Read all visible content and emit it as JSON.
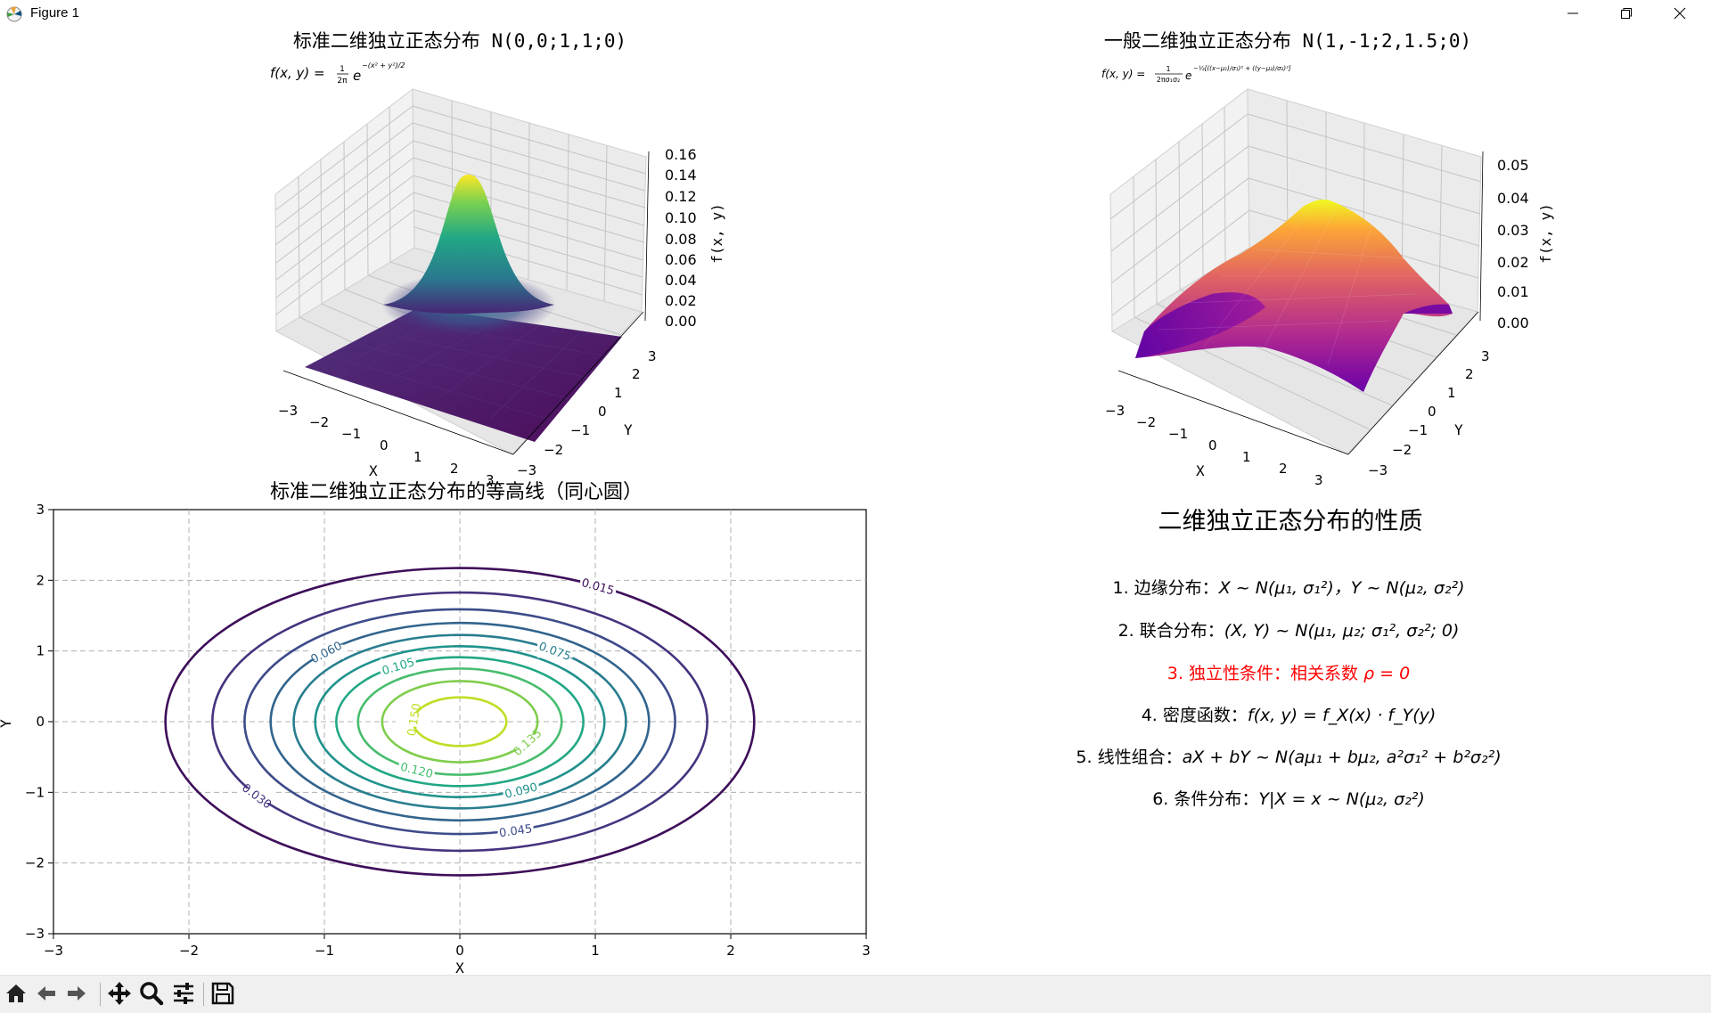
{
  "window": {
    "title": "Figure 1",
    "minimize_icon": "minimize-icon",
    "maximize_icon": "restore-icon",
    "close_icon": "close-icon",
    "app_icon": "matplotlib-icon"
  },
  "toolbar": {
    "buttons": [
      "home-icon",
      "back-icon",
      "forward-icon",
      "pan-icon",
      "zoom-icon",
      "configure-subplots-icon",
      "save-icon"
    ]
  },
  "panel1": {
    "title": "标准二维独立正态分布 N(0,0;1,1;0)",
    "formula_lhs": "f(x, y) =",
    "formula_num": "1",
    "formula_den": "2π",
    "formula_exp": "−(x² + y²)/2",
    "zlabel": "f(x, y)",
    "xlabel": "X",
    "ylabel": "Y",
    "zticks": [
      "0.00",
      "0.02",
      "0.04",
      "0.06",
      "0.08",
      "0.10",
      "0.12",
      "0.14",
      "0.16"
    ],
    "xticks": [
      "−3",
      "−2",
      "−1",
      "0",
      "1",
      "2",
      "3"
    ],
    "yticks": [
      "−3",
      "−2",
      "−1",
      "0",
      "1",
      "2",
      "3"
    ],
    "colormap": "viridis"
  },
  "panel2": {
    "title": "一般二维独立正态分布 N(1,-1;2,1.5;0)",
    "formula_lhs": "f(x, y) =",
    "formula_num": "1",
    "formula_den": "2πσ₁σ₂",
    "formula_exp": "−½[((x−μ₁)/σ₁)² + ((y−μ₂)/σ₂)²]",
    "zlabel": "f(x, y)",
    "xlabel": "X",
    "ylabel": "Y",
    "zticks": [
      "0.00",
      "0.01",
      "0.02",
      "0.03",
      "0.04",
      "0.05"
    ],
    "xticks": [
      "−3",
      "−2",
      "−1",
      "0",
      "1",
      "2",
      "3"
    ],
    "yticks": [
      "−3",
      "−2",
      "−1",
      "0",
      "1",
      "2",
      "3"
    ],
    "colormap": "plasma"
  },
  "panel3": {
    "title": "标准二维独立正态分布的等高线（同心圆）",
    "xlabel": "X",
    "ylabel": "Y",
    "xticks": [
      "−3",
      "−2",
      "−1",
      "0",
      "1",
      "2",
      "3"
    ],
    "yticks": [
      "−3",
      "−2",
      "−1",
      "0",
      "1",
      "2",
      "3"
    ]
  },
  "panel4": {
    "title": "二维独立正态分布的性质",
    "properties": [
      {
        "num": "1.",
        "label": "边缘分布：",
        "math": "X ~ N(μ₁, σ₁²)，Y ~ N(μ₂, σ₂²)"
      },
      {
        "num": "2.",
        "label": "联合分布：",
        "math": "(X, Y) ~ N(μ₁, μ₂; σ₁², σ₂²; 0)"
      },
      {
        "num": "3.",
        "label": "独立性条件：相关系数 ",
        "math": "ρ = 0"
      },
      {
        "num": "4.",
        "label": "密度函数：",
        "math": "f(x, y) = f_X(x) · f_Y(y)"
      },
      {
        "num": "5.",
        "label": "线性组合：",
        "math": "aX + bY ~ N(aμ₁ + bμ₂, a²σ₁² + b²σ₂²)"
      },
      {
        "num": "6.",
        "label": "条件分布：",
        "math": "Y|X = x ~ N(μ₂, σ₂²)"
      }
    ],
    "highlight_color": "#ff0000"
  },
  "chart_data": [
    {
      "type": "surface",
      "title": "标准二维独立正态分布 N(0,0;1,1;0)",
      "function": "f(x,y) = 1/(2π) · exp(−(x²+y²)/2)",
      "mu": [
        0,
        0
      ],
      "sigma": [
        1,
        1
      ],
      "rho": 0,
      "xlim": [
        -3,
        3
      ],
      "ylim": [
        -3,
        3
      ],
      "zlim": [
        0,
        0.16
      ],
      "peak": 0.159,
      "xlabel": "X",
      "ylabel": "Y",
      "zlabel": "f(x, y)",
      "colormap": "viridis"
    },
    {
      "type": "surface",
      "title": "一般二维独立正态分布 N(1,-1;2,1.5;0)",
      "function": "f(x,y) = 1/(2πσ₁σ₂) · exp(−½[((x−μ₁)/σ₁)² + ((y−μ₂)/σ₂)²])",
      "mu": [
        1,
        -1
      ],
      "sigma": [
        2,
        1.5
      ],
      "rho": 0,
      "xlim": [
        -3,
        3
      ],
      "ylim": [
        -3,
        3
      ],
      "zlim": [
        0,
        0.053
      ],
      "peak": 0.053,
      "xlabel": "X",
      "ylabel": "Y",
      "zlabel": "f(x, y)",
      "colormap": "plasma"
    },
    {
      "type": "contour",
      "title": "标准二维独立正态分布的等高线（同心圆）",
      "xlim": [
        -3,
        3
      ],
      "ylim": [
        -3,
        3
      ],
      "xlabel": "X",
      "ylabel": "Y",
      "grid": true,
      "levels": [
        0.015,
        0.03,
        0.045,
        0.06,
        0.075,
        0.09,
        0.105,
        0.12,
        0.135,
        0.15
      ],
      "level_labels": [
        "0.015",
        "0.030",
        "0.045",
        "0.060",
        "0.075",
        "0.090",
        "0.105",
        "0.120",
        "0.135",
        "0.150"
      ],
      "colormap": "viridis"
    }
  ]
}
